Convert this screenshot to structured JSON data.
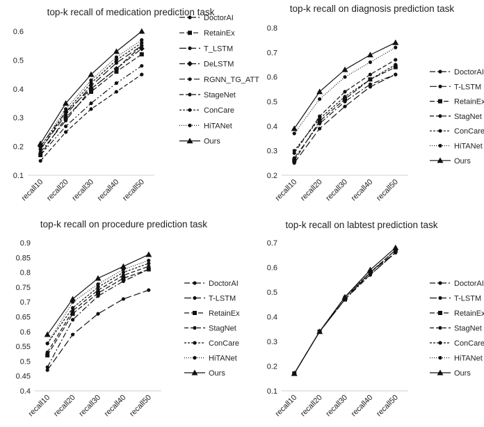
{
  "chart_data": [
    {
      "type": "line",
      "title": "top-k recall of medication prediction task",
      "categories": [
        "recall10",
        "recall20",
        "recall30",
        "recall40",
        "recall50"
      ],
      "ylim": [
        0.1,
        0.6
      ],
      "yticks": [
        "0.1",
        "0.2",
        "0.3",
        "0.4",
        "0.5",
        "0.6"
      ],
      "grid": false,
      "legend_position": "right",
      "series": [
        {
          "name": "DoctorAI",
          "values": [
            0.18,
            0.29,
            0.4,
            0.47,
            0.55
          ],
          "dash": "8,3,2,3",
          "marker": "circle"
        },
        {
          "name": "RetainEx",
          "values": [
            0.17,
            0.3,
            0.39,
            0.46,
            0.52
          ],
          "dash": "7,3",
          "marker": "square"
        },
        {
          "name": "T_LSTM",
          "values": [
            0.19,
            0.31,
            0.41,
            0.49,
            0.55
          ],
          "dash": "10,4",
          "marker": "circle"
        },
        {
          "name": "DeLSTM",
          "values": [
            0.2,
            0.32,
            0.4,
            0.47,
            0.54
          ],
          "dash": "8,3,2,3",
          "marker": "diamond"
        },
        {
          "name": "RGNN_TG_ATT",
          "values": [
            0.17,
            0.27,
            0.35,
            0.42,
            0.48
          ],
          "dash": "8,3,2,3,2,3",
          "marker": "circle"
        },
        {
          "name": "StageNet",
          "values": [
            0.15,
            0.25,
            0.33,
            0.39,
            0.45
          ],
          "dash": "6,3",
          "marker": "circle"
        },
        {
          "name": "ConCare",
          "values": [
            0.19,
            0.32,
            0.42,
            0.5,
            0.56
          ],
          "dash": "3,2",
          "marker": "circle"
        },
        {
          "name": "HiTANet",
          "values": [
            0.2,
            0.33,
            0.43,
            0.51,
            0.57
          ],
          "dash": "1,2",
          "marker": "circle"
        },
        {
          "name": "Ours",
          "values": [
            0.21,
            0.35,
            0.45,
            0.53,
            0.6
          ],
          "dash": "",
          "marker": "triangle"
        }
      ]
    },
    {
      "type": "line",
      "title": "top-k recall on diagnosis prediction task",
      "categories": [
        "recall10",
        "recall20",
        "recall30",
        "recall40",
        "recall50"
      ],
      "ylim": [
        0.2,
        0.8
      ],
      "yticks": [
        "0.2",
        "0.3",
        "0.4",
        "0.5",
        "0.6",
        "0.7",
        "0.8"
      ],
      "grid": false,
      "legend_position": "right",
      "series": [
        {
          "name": "DoctorAI",
          "values": [
            0.27,
            0.41,
            0.5,
            0.57,
            0.61
          ],
          "dash": "8,3,2,3",
          "marker": "circle"
        },
        {
          "name": "T-LSTM",
          "values": [
            0.25,
            0.39,
            0.48,
            0.56,
            0.61
          ],
          "dash": "10,4",
          "marker": "circle"
        },
        {
          "name": "RetainEx",
          "values": [
            0.26,
            0.42,
            0.51,
            0.59,
            0.64
          ],
          "dash": "7,3",
          "marker": "square"
        },
        {
          "name": "StagNet",
          "values": [
            0.29,
            0.44,
            0.54,
            0.61,
            0.67
          ],
          "dash": "6,3",
          "marker": "circle"
        },
        {
          "name": "ConCare",
          "values": [
            0.3,
            0.43,
            0.52,
            0.59,
            0.65
          ],
          "dash": "3,2",
          "marker": "circle"
        },
        {
          "name": "HiTANet",
          "values": [
            0.37,
            0.51,
            0.6,
            0.66,
            0.72
          ],
          "dash": "1,2",
          "marker": "circle"
        },
        {
          "name": "Ours",
          "values": [
            0.39,
            0.54,
            0.63,
            0.69,
            0.74
          ],
          "dash": "",
          "marker": "triangle"
        }
      ]
    },
    {
      "type": "line",
      "title": "top-k recall on procedure prediction task",
      "categories": [
        "recall10",
        "recall20",
        "recall30",
        "recall40",
        "recall50"
      ],
      "ylim": [
        0.4,
        0.9
      ],
      "yticks": [
        "0.4",
        "0.45",
        "0.5",
        "0.55",
        "0.6",
        "0.65",
        "0.7",
        "0.75",
        "0.8",
        "0.85",
        "0.9"
      ],
      "grid": false,
      "legend_position": "right",
      "series": [
        {
          "name": "DoctorAI",
          "values": [
            0.48,
            0.64,
            0.72,
            0.77,
            0.81
          ],
          "dash": "8,3,2,3",
          "marker": "circle"
        },
        {
          "name": "T-LSTM",
          "values": [
            0.47,
            0.59,
            0.66,
            0.71,
            0.74
          ],
          "dash": "10,4",
          "marker": "circle"
        },
        {
          "name": "RetainEx",
          "values": [
            0.52,
            0.66,
            0.73,
            0.78,
            0.81
          ],
          "dash": "7,3",
          "marker": "square"
        },
        {
          "name": "StagNet",
          "values": [
            0.53,
            0.67,
            0.74,
            0.79,
            0.82
          ],
          "dash": "6,3",
          "marker": "circle"
        },
        {
          "name": "ConCare",
          "values": [
            0.56,
            0.68,
            0.75,
            0.8,
            0.83
          ],
          "dash": "3,2",
          "marker": "circle"
        },
        {
          "name": "HiTANet",
          "values": [
            0.56,
            0.7,
            0.76,
            0.81,
            0.84
          ],
          "dash": "1,2",
          "marker": "circle"
        },
        {
          "name": "Ours",
          "values": [
            0.59,
            0.71,
            0.78,
            0.82,
            0.86
          ],
          "dash": "",
          "marker": "triangle"
        }
      ]
    },
    {
      "type": "line",
      "title": "top-k recall on labtest prediction task",
      "categories": [
        "recall10",
        "recall20",
        "recall30",
        "recall40",
        "recall50"
      ],
      "ylim": [
        0.1,
        0.7
      ],
      "yticks": [
        "0.1",
        "0.2",
        "0.3",
        "0.4",
        "0.5",
        "0.6",
        "0.7"
      ],
      "grid": false,
      "legend_position": "right",
      "series": [
        {
          "name": "DoctorAI",
          "values": [
            0.17,
            0.34,
            0.47,
            0.57,
            0.66
          ],
          "dash": "8,3,2,3",
          "marker": "circle"
        },
        {
          "name": "T-LSTM",
          "values": [
            0.17,
            0.34,
            0.47,
            0.58,
            0.66
          ],
          "dash": "10,4",
          "marker": "circle"
        },
        {
          "name": "RetainEx",
          "values": [
            0.17,
            0.34,
            0.47,
            0.58,
            0.67
          ],
          "dash": "7,3",
          "marker": "square"
        },
        {
          "name": "StagNet",
          "values": [
            0.17,
            0.34,
            0.48,
            0.57,
            0.66
          ],
          "dash": "6,3",
          "marker": "circle"
        },
        {
          "name": "ConCare",
          "values": [
            0.17,
            0.34,
            0.48,
            0.58,
            0.67
          ],
          "dash": "3,2",
          "marker": "circle"
        },
        {
          "name": "HiTANet",
          "values": [
            0.17,
            0.34,
            0.48,
            0.58,
            0.67
          ],
          "dash": "1,2",
          "marker": "circle"
        },
        {
          "name": "Ours",
          "values": [
            0.17,
            0.34,
            0.48,
            0.59,
            0.68
          ],
          "dash": "",
          "marker": "triangle"
        }
      ]
    }
  ]
}
